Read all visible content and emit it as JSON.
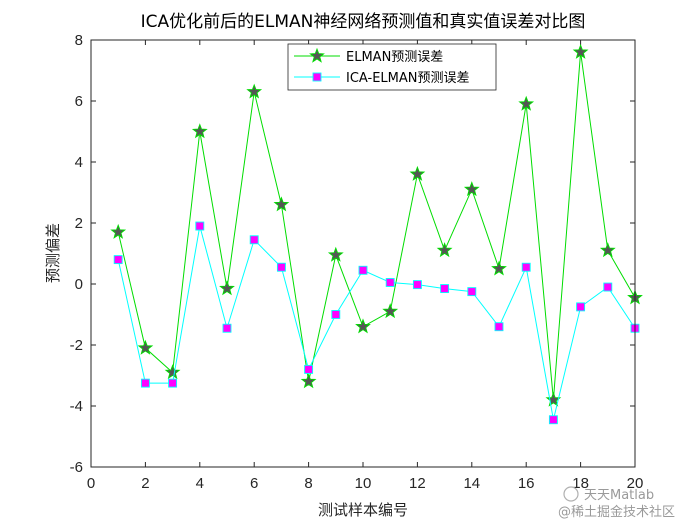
{
  "chart_data": {
    "type": "line",
    "title": "ICA优化前后的ELMAN神经网络预测值和真实值误差对比图",
    "xlabel": "测试样本编号",
    "ylabel": "预测偏差",
    "xlim": [
      0,
      20
    ],
    "ylim": [
      -6,
      8
    ],
    "xticks": [
      "0",
      "2",
      "4",
      "6",
      "8",
      "10",
      "12",
      "14",
      "16",
      "18",
      "20"
    ],
    "yticks": [
      "-6",
      "-4",
      "-2",
      "0",
      "2",
      "4",
      "6",
      "8"
    ],
    "grid": false,
    "legend_position": "top-center",
    "x": [
      1,
      2,
      3,
      4,
      5,
      6,
      7,
      8,
      9,
      10,
      11,
      12,
      13,
      14,
      15,
      16,
      17,
      18,
      19,
      20
    ],
    "series": [
      {
        "name": "ELMAN预测误差",
        "color": "#00dd00",
        "marker": "star",
        "marker_color": "#555555",
        "values": [
          1.7,
          -2.1,
          -2.9,
          5.0,
          -0.15,
          6.3,
          2.6,
          -3.2,
          0.95,
          -1.4,
          -0.9,
          3.6,
          1.1,
          3.1,
          0.5,
          5.9,
          -3.8,
          7.6,
          1.1,
          -0.45
        ]
      },
      {
        "name": "ICA-ELMAN预测误差",
        "color": "#00ffff",
        "marker": "square",
        "marker_color": "#ff00ff",
        "values": [
          0.8,
          -3.25,
          -3.25,
          1.9,
          -1.45,
          1.45,
          0.55,
          -2.8,
          -1.0,
          0.45,
          0.05,
          -0.02,
          -0.15,
          -0.25,
          -1.4,
          0.55,
          -4.45,
          -0.75,
          -0.1,
          -1.45
        ]
      }
    ]
  },
  "watermark": {
    "line1": "天天Matlab",
    "line2": "@稀土掘金技术社区"
  }
}
